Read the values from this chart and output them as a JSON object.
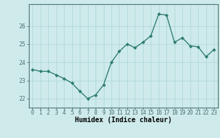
{
  "x": [
    0,
    1,
    2,
    3,
    4,
    5,
    6,
    7,
    8,
    9,
    10,
    11,
    12,
    13,
    14,
    15,
    16,
    17,
    18,
    19,
    20,
    21,
    22,
    23
  ],
  "y": [
    23.6,
    23.5,
    23.5,
    23.3,
    23.1,
    22.85,
    22.4,
    22.0,
    22.2,
    22.75,
    24.0,
    24.6,
    25.0,
    24.8,
    25.1,
    25.45,
    26.65,
    26.6,
    25.1,
    25.35,
    24.9,
    24.85,
    24.3,
    24.7
  ],
  "xlabel": "Humidex (Indice chaleur)",
  "line_color": "#2d7d6e",
  "marker_color": "#2d7d6e",
  "bg_color": "#ceeaea",
  "grid_color": "#b0d8d8",
  "axis_color": "#4a7070",
  "ylim": [
    21.5,
    27.2
  ],
  "yticks": [
    22,
    23,
    24,
    25,
    26
  ],
  "xticks": [
    0,
    1,
    2,
    3,
    4,
    5,
    6,
    7,
    8,
    9,
    10,
    11,
    12,
    13,
    14,
    15,
    16,
    17,
    18,
    19,
    20,
    21,
    22,
    23
  ],
  "tick_fontsize": 5.8,
  "xlabel_fontsize": 7.0
}
